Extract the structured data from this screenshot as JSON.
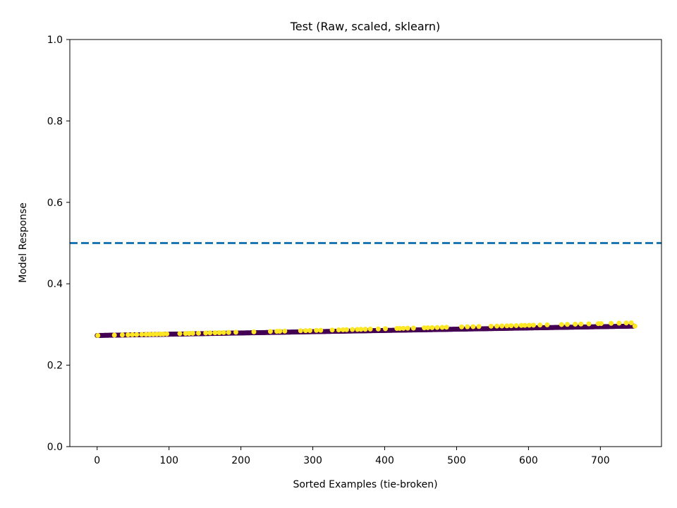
{
  "chart_data": {
    "type": "scatter",
    "title": "Test (Raw, scaled, sklearn)",
    "xlabel": "Sorted Examples (tie-broken)",
    "ylabel": "Model Response",
    "xlim": [
      -38,
      785
    ],
    "ylim": [
      0.0,
      1.0
    ],
    "x_ticks": [
      0,
      100,
      200,
      300,
      400,
      500,
      600,
      700
    ],
    "y_ticks": [
      0.0,
      0.2,
      0.4,
      0.6,
      0.8,
      1.0
    ],
    "x_tick_labels": [
      "0",
      "100",
      "200",
      "300",
      "400",
      "500",
      "600",
      "700"
    ],
    "y_tick_labels": [
      "0.0",
      "0.2",
      "0.4",
      "0.6",
      "0.8",
      "1.0"
    ],
    "grid": false,
    "threshold": {
      "y": 0.5,
      "style": "dashed",
      "color": "#1f77b4"
    },
    "series": [
      {
        "label_class": 0,
        "color": "#440154",
        "count": 748,
        "y_start": 0.273,
        "y_end": 0.296
      },
      {
        "label_class": 1,
        "color": "#fde725",
        "x": [
          1,
          24,
          35,
          43,
          49,
          55,
          62,
          68,
          73,
          78,
          83,
          88,
          92,
          97,
          115,
          123,
          128,
          133,
          141,
          151,
          157,
          164,
          170,
          176,
          183,
          193,
          218,
          241,
          250,
          254,
          261,
          283,
          290,
          296,
          305,
          311,
          327,
          336,
          342,
          347,
          355,
          362,
          367,
          373,
          380,
          391,
          401,
          417,
          421,
          426,
          432,
          440,
          455,
          460,
          466,
          473,
          480,
          486,
          507,
          515,
          523,
          531,
          548,
          556,
          563,
          570,
          576,
          583,
          590,
          595,
          601,
          607,
          616,
          626,
          646,
          654,
          665,
          673,
          684,
          697,
          701,
          715,
          726,
          736,
          743,
          748
        ],
        "y": [
          0.273,
          0.2739,
          0.2744,
          0.2747,
          0.275,
          0.2752,
          0.2755,
          0.2757,
          0.2759,
          0.2761,
          0.2763,
          0.2765,
          0.2767,
          0.2769,
          0.2776,
          0.278,
          0.2782,
          0.2784,
          0.2787,
          0.2791,
          0.2794,
          0.2797,
          0.2799,
          0.2802,
          0.2805,
          0.2809,
          0.2819,
          0.2828,
          0.2832,
          0.2834,
          0.2837,
          0.2846,
          0.2849,
          0.2851,
          0.2855,
          0.2858,
          0.2865,
          0.2868,
          0.2871,
          0.2873,
          0.2876,
          0.2879,
          0.2881,
          0.2884,
          0.2887,
          0.2891,
          0.2896,
          0.2902,
          0.2904,
          0.2906,
          0.2909,
          0.2912,
          0.2918,
          0.2921,
          0.2923,
          0.2926,
          0.2929,
          0.2932,
          0.2941,
          0.2944,
          0.2947,
          0.2951,
          0.2958,
          0.2961,
          0.2964,
          0.2967,
          0.297,
          0.2973,
          0.2976,
          0.2978,
          0.2981,
          0.2983,
          0.2987,
          0.2991,
          0.2999,
          0.3003,
          0.3008,
          0.3011,
          0.3016,
          0.3021,
          0.3023,
          0.3029,
          0.3033,
          0.3038,
          0.3041,
          0.296
        ]
      }
    ]
  }
}
